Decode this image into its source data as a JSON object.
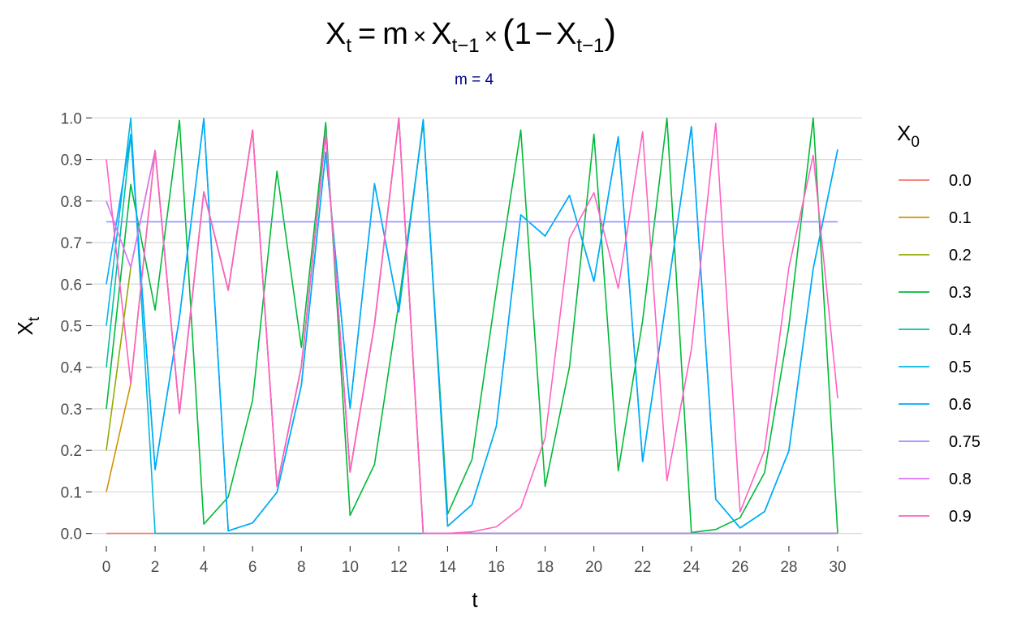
{
  "chart_data": {
    "type": "line",
    "title": {
      "lhs": "X",
      "lhs_sub": "t",
      "eq": "=",
      "m": "m",
      "times": "×",
      "x_prev": "X",
      "x_prev_sub": "t−1",
      "paren_open": "(",
      "one": "1",
      "minus": "−",
      "paren_close": ")"
    },
    "subtitle": "m = 4",
    "subtitle_color": "#00008B",
    "xlabel": "t",
    "ylabel": "X",
    "ylabel_sub": "t",
    "xlim": [
      -0.6,
      31.0
    ],
    "ylim": [
      -0.03,
      1.03
    ],
    "x_ticks": [
      0,
      2,
      4,
      6,
      8,
      10,
      12,
      14,
      16,
      18,
      20,
      22,
      24,
      26,
      28,
      30
    ],
    "x_tick_labels": [
      "0",
      "2",
      "4",
      "6",
      "8",
      "10",
      "12",
      "14",
      "16",
      "18",
      "20",
      "22",
      "24",
      "26",
      "28",
      "30"
    ],
    "y_ticks": [
      0.0,
      0.1,
      0.2,
      0.3,
      0.4,
      0.5,
      0.6,
      0.7,
      0.8,
      0.9,
      1.0
    ],
    "y_tick_labels": [
      "0.0",
      "0.1",
      "0.2",
      "0.3",
      "0.4",
      "0.5",
      "0.6",
      "0.7",
      "0.8",
      "0.9",
      "1.0"
    ],
    "grid": "horizontal",
    "legend": {
      "title": "X",
      "title_sub": "0",
      "position": "right"
    },
    "x": [
      0,
      1,
      2,
      3,
      4,
      5,
      6,
      7,
      8,
      9,
      10,
      11,
      12,
      13,
      14,
      15,
      16,
      17,
      18,
      19,
      20,
      21,
      22,
      23,
      24,
      25,
      26,
      27,
      28,
      29,
      30
    ],
    "series": [
      {
        "name": "0.0",
        "color": "#F8766D",
        "values": [
          0,
          0,
          0,
          0,
          0,
          0,
          0,
          0,
          0,
          0,
          0,
          0,
          0,
          0,
          0,
          0,
          0,
          0,
          0,
          0,
          0,
          0,
          0,
          0,
          0,
          0,
          0,
          0,
          0,
          0,
          0
        ]
      },
      {
        "name": "0.1",
        "color": "#D39200",
        "values": [
          0.1,
          0.36,
          0.9216,
          0.289,
          0.822,
          0.5854,
          0.9708,
          0.1133,
          0.402,
          0.9616,
          0.1478,
          0.5038,
          1.0,
          0.0,
          0,
          0,
          0,
          0,
          0,
          0,
          0,
          0,
          0,
          0,
          0,
          0,
          0,
          0,
          0,
          0,
          0
        ]
      },
      {
        "name": "0.2",
        "color": "#93AA00",
        "values": [
          0.2,
          0.64,
          0.9216,
          0.289,
          0.822,
          0.5854,
          0.9708,
          0.1133,
          0.402,
          0.9616,
          0.1478,
          0.5038,
          1.0,
          0.0,
          0,
          0,
          0,
          0,
          0,
          0,
          0,
          0,
          0,
          0,
          0,
          0,
          0,
          0,
          0,
          0,
          0
        ]
      },
      {
        "name": "0.3",
        "color": "#00BA38",
        "values": [
          0.3,
          0.84,
          0.5376,
          0.9943,
          0.0225,
          0.0879,
          0.3208,
          0.8716,
          0.4476,
          0.989,
          0.0434,
          0.1662,
          0.5544,
          0.9882,
          0.0467,
          0.178,
          0.5853,
          0.9709,
          0.113,
          0.401,
          0.9608,
          0.1506,
          0.5118,
          0.9994,
          0.0024,
          0.0096,
          0.038,
          0.146,
          0.4989,
          1.0,
          0.0
        ]
      },
      {
        "name": "0.4",
        "color": "#00C19F",
        "values": [
          0.4,
          0.96,
          0.1536,
          0.52,
          0.9984,
          0.0064,
          0.0254,
          0.099,
          0.357,
          0.918,
          0.301,
          0.8416,
          0.533,
          0.9956,
          0.0177,
          0.0694,
          0.2584,
          0.7666,
          0.7158,
          0.8137,
          0.6065,
          0.9547,
          0.173,
          0.5722,
          0.979,
          0.0822,
          0.0133,
          0.0525,
          0.199,
          0.6376,
          0.924
        ]
      },
      {
        "name": "0.5",
        "color": "#00B9E3",
        "values": [
          0.5,
          1.0,
          0.0,
          0,
          0,
          0,
          0,
          0,
          0,
          0,
          0,
          0,
          0,
          0,
          0,
          0,
          0,
          0,
          0,
          0,
          0,
          0,
          0,
          0,
          0,
          0,
          0,
          0,
          0,
          0,
          0
        ]
      },
      {
        "name": "0.6",
        "color": "#00A9FF",
        "values": [
          0.6,
          0.96,
          0.1536,
          0.52,
          0.9984,
          0.0064,
          0.0254,
          0.099,
          0.357,
          0.918,
          0.301,
          0.8416,
          0.533,
          0.9956,
          0.0177,
          0.0694,
          0.2584,
          0.7666,
          0.7158,
          0.8137,
          0.6065,
          0.9547,
          0.173,
          0.5722,
          0.979,
          0.0822,
          0.0133,
          0.0525,
          0.199,
          0.6376,
          0.924
        ]
      },
      {
        "name": "0.75",
        "color": "#9590FF",
        "values": [
          0.75,
          0.75,
          0.75,
          0.75,
          0.75,
          0.75,
          0.75,
          0.75,
          0.75,
          0.75,
          0.75,
          0.75,
          0.75,
          0.75,
          0.75,
          0.75,
          0.75,
          0.75,
          0.75,
          0.75,
          0.75,
          0.75,
          0.75,
          0.75,
          0.75,
          0.75,
          0.75,
          0.75,
          0.75,
          0.75,
          0.75
        ]
      },
      {
        "name": "0.8",
        "color": "#DB72FB",
        "values": [
          0.8,
          0.64,
          0.9216,
          0.289,
          0.822,
          0.5854,
          0.9708,
          0.1133,
          0.402,
          0.9616,
          0.1478,
          0.5038,
          1.0,
          0.0,
          0,
          0,
          0,
          0,
          0,
          0,
          0,
          0,
          0,
          0,
          0,
          0,
          0,
          0,
          0,
          0,
          0
        ]
      },
      {
        "name": "0.9",
        "color": "#FF61C3",
        "values": [
          0.9,
          0.36,
          0.9216,
          0.289,
          0.822,
          0.5854,
          0.9708,
          0.1133,
          0.402,
          0.9616,
          0.1478,
          0.5038,
          1.0,
          0.0,
          0.0,
          0.004,
          0.016,
          0.062,
          0.23,
          0.71,
          0.82,
          0.59,
          0.967,
          0.127,
          0.443,
          0.987,
          0.052,
          0.2,
          0.64,
          0.91,
          0.325
        ]
      }
    ]
  }
}
